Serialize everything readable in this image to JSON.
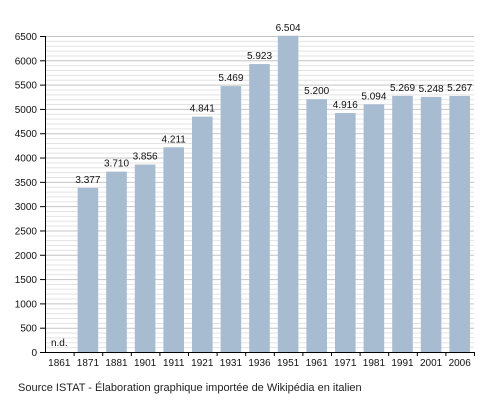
{
  "chart_data": {
    "type": "bar",
    "title": "",
    "xlabel": "",
    "ylabel": "",
    "categories": [
      "1861",
      "1871",
      "1881",
      "1901",
      "1911",
      "1921",
      "1931",
      "1936",
      "1951",
      "1961",
      "1971",
      "1981",
      "1991",
      "2001",
      "2006"
    ],
    "values": [
      null,
      3377,
      3710,
      3856,
      4211,
      4841,
      5469,
      5923,
      6504,
      5200,
      4916,
      5094,
      5269,
      5248,
      5267
    ],
    "value_labels": [
      "n.d.",
      "3.377",
      "3.710",
      "3.856",
      "4.211",
      "4.841",
      "5.469",
      "5.923",
      "6.504",
      "5.200",
      "4.916",
      "5.094",
      "5.269",
      "5.248",
      "5.267"
    ],
    "ylim": [
      0,
      6500
    ],
    "yticks": [
      0,
      500,
      1000,
      1500,
      2000,
      2500,
      3000,
      3500,
      4000,
      4500,
      5000,
      5500,
      6000,
      6500
    ],
    "ytick_labels": [
      "0",
      "500",
      "1000",
      "1500",
      "2000",
      "2500",
      "3000",
      "3500",
      "4000",
      "4500",
      "5000",
      "5500",
      "6000",
      "6500"
    ],
    "minor_grid_step": 100,
    "grid": true,
    "legend": "none",
    "bar_color": "#a7bbd1"
  },
  "source_text": "Source ISTAT - Élaboration graphique importée de Wikipédia en italien"
}
